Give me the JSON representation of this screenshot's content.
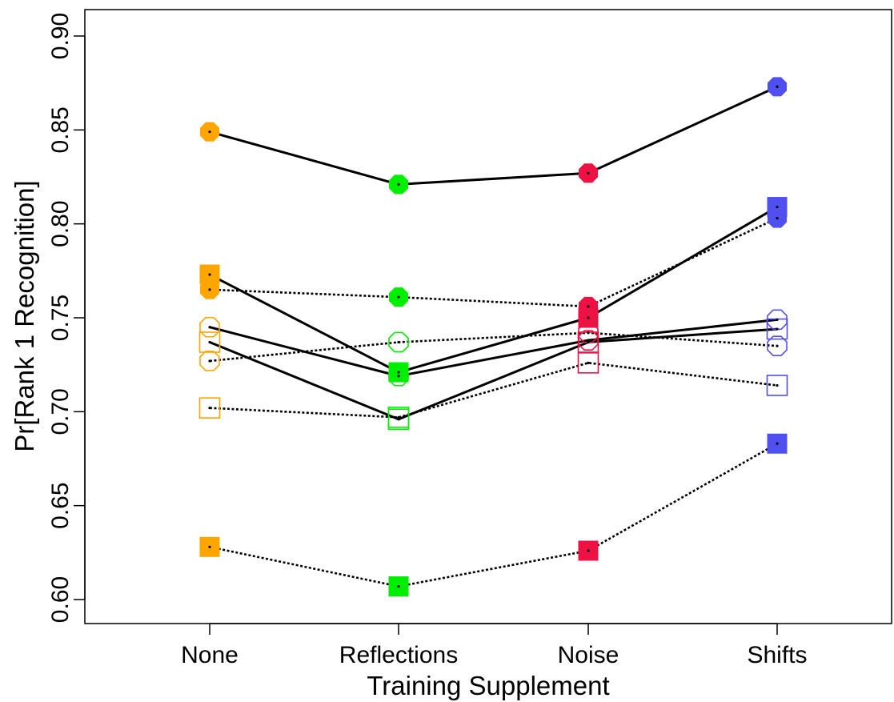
{
  "chart_data": {
    "type": "line",
    "title": "",
    "xlabel": "Training Supplement",
    "ylabel": "Pr[Rank 1 Recognition]",
    "categories": [
      "None",
      "Reflections",
      "Noise",
      "Shifts"
    ],
    "category_colors": [
      "#FFA500",
      "#00EE00",
      "#EE1144",
      "#5050F0"
    ],
    "ylim": [
      0.585,
      0.905
    ],
    "yticks": [
      "0.60",
      "0.65",
      "0.70",
      "0.75",
      "0.80",
      "0.85",
      "0.90"
    ],
    "grid": false,
    "series": [
      {
        "marker": "circle",
        "filled": true,
        "line": "solid",
        "values": [
          0.849,
          0.821,
          0.827,
          0.873
        ]
      },
      {
        "marker": "square",
        "filled": true,
        "line": "solid",
        "values": [
          0.773,
          0.721,
          0.75,
          0.809
        ]
      },
      {
        "marker": "circle",
        "filled": true,
        "line": "dotted",
        "values": [
          0.765,
          0.761,
          0.756,
          0.803
        ]
      },
      {
        "marker": "circle",
        "filled": false,
        "line": "solid",
        "values": [
          0.745,
          0.719,
          0.738,
          0.749
        ]
      },
      {
        "marker": "square",
        "filled": false,
        "line": "solid",
        "values": [
          0.737,
          0.696,
          0.737,
          0.744
        ]
      },
      {
        "marker": "circle",
        "filled": false,
        "line": "dotted",
        "values": [
          0.727,
          0.737,
          0.742,
          0.735
        ]
      },
      {
        "marker": "square",
        "filled": false,
        "line": "dotted",
        "values": [
          0.702,
          0.697,
          0.726,
          0.714
        ]
      },
      {
        "marker": "square",
        "filled": true,
        "line": "dotted",
        "values": [
          0.628,
          0.607,
          0.626,
          0.683
        ]
      }
    ]
  }
}
